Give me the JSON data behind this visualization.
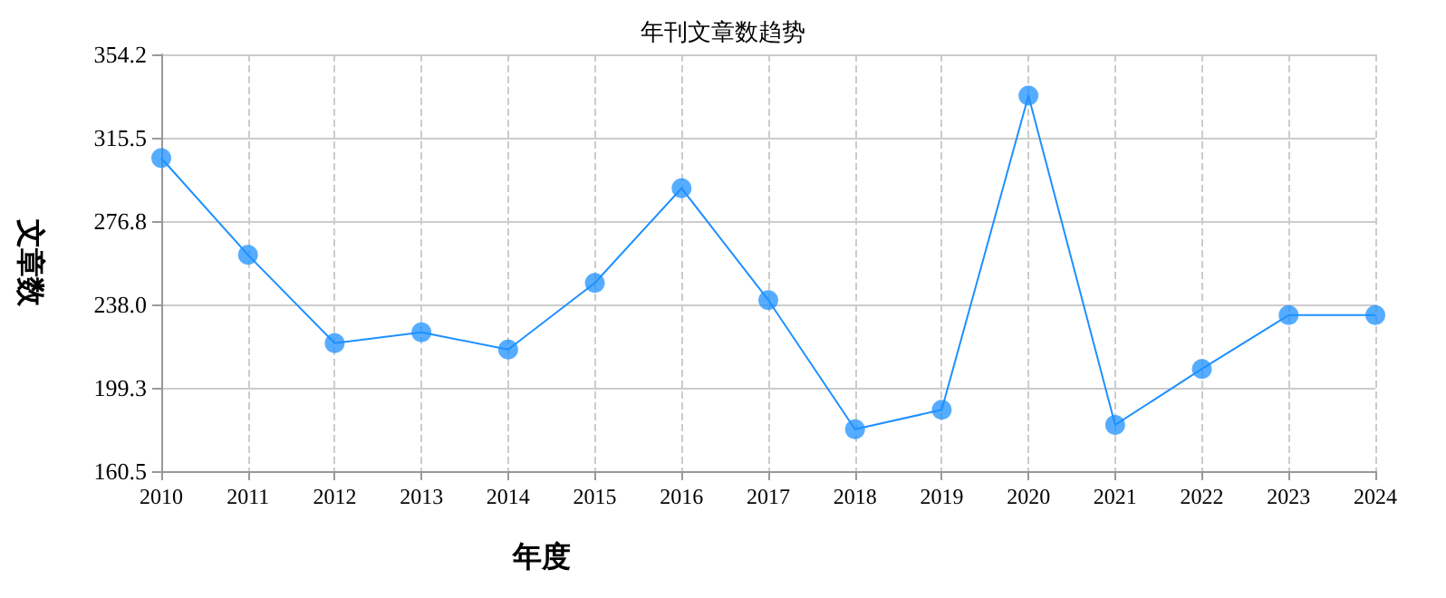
{
  "chart_data": {
    "type": "line",
    "title": "年刊文章数趋势",
    "xlabel": "年度",
    "ylabel": "文章数",
    "categories": [
      "2010",
      "2011",
      "2012",
      "2013",
      "2014",
      "2015",
      "2016",
      "2017",
      "2018",
      "2019",
      "2020",
      "2021",
      "2022",
      "2023",
      "2024"
    ],
    "series": [
      {
        "color": "#1e90ff",
        "values": [
          306,
          261,
          220,
          225,
          217,
          248,
          292,
          240,
          180,
          189,
          335,
          182,
          208,
          233,
          233
        ]
      }
    ],
    "ylim": [
      160.5,
      354.2
    ],
    "yticks": [
      160.5,
      199.3,
      {
        "value": 238,
        "label": "238.0"
      },
      276.8,
      315.5,
      354.2
    ],
    "grid": true,
    "marker": "circle",
    "line_style": "solid"
  }
}
